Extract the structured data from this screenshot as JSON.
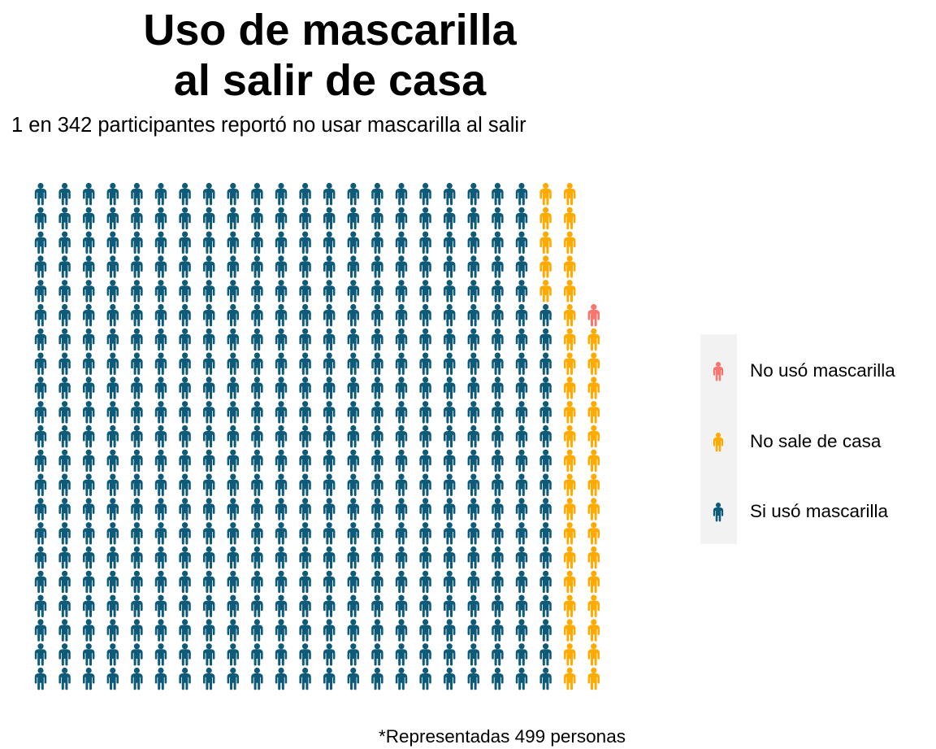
{
  "title_line1": "Uso de mascarilla",
  "title_line2": "al salir de casa",
  "subtitle": "1 en 342 participantes reportó no usar mascarilla al salir",
  "caption": "*Representadas 499 personas",
  "colors": {
    "no_mask": "#f8766d",
    "stays_home": "#ffaa00",
    "mask": "#0d5b78"
  },
  "chart_data": {
    "type": "waffle",
    "title": "Uso de mascarilla al salir de casa",
    "subtitle": "1 en 342 participantes reportó no usar mascarilla al salir",
    "caption": "*Representadas 499 personas",
    "icon": "person-icon",
    "rows": 21,
    "columns": 25,
    "total": 499,
    "legend_position": "right",
    "categories": [
      "No usó mascarilla",
      "No sale de casa",
      "Si usó mascarilla"
    ],
    "values": [
      1,
      41,
      457
    ],
    "series": [
      {
        "name": "No usó mascarilla",
        "value": 1,
        "color": "#f8766d"
      },
      {
        "name": "No sale de casa",
        "value": 41,
        "color": "#ffaa00"
      },
      {
        "name": "Si usó mascarilla",
        "value": 457,
        "color": "#0d5b78"
      }
    ]
  },
  "legend": {
    "items": [
      {
        "label": "No usó mascarilla",
        "color": "#f8766d"
      },
      {
        "label": "No sale de casa",
        "color": "#ffaa00"
      },
      {
        "label": "Si usó mascarilla",
        "color": "#0d5b78"
      }
    ]
  }
}
